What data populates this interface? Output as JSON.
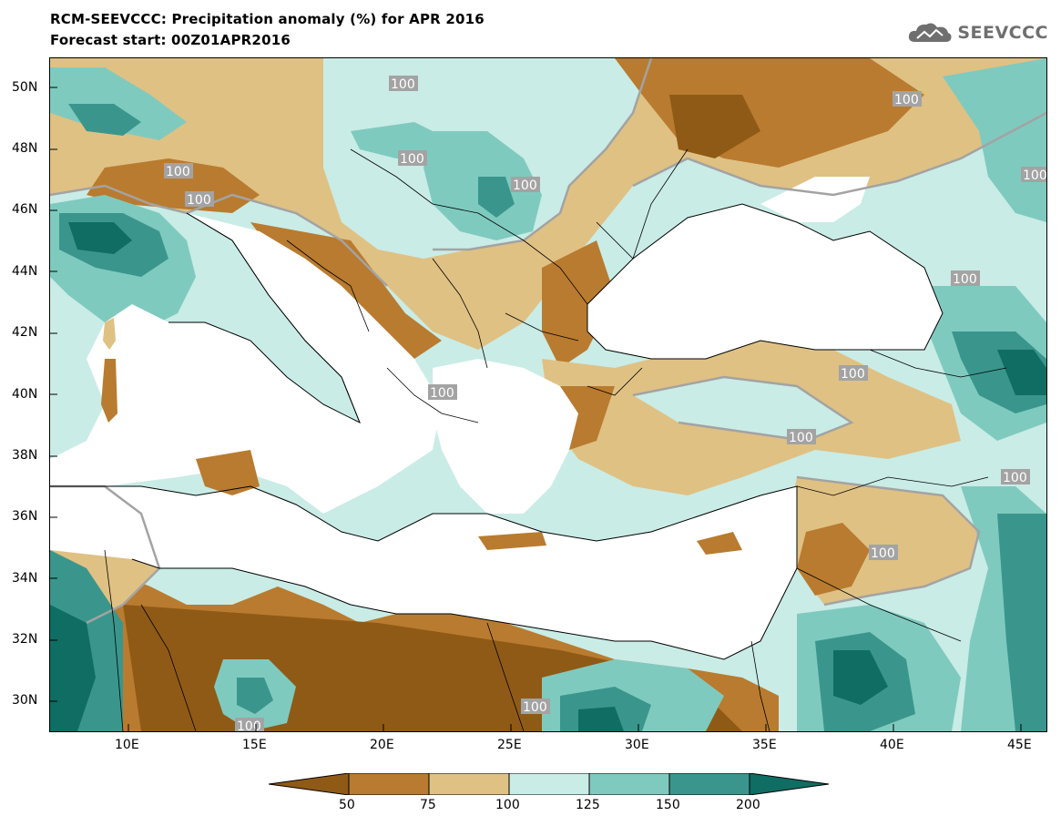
{
  "header": {
    "title_line1": "RCM-SEEVCCC: Precipitation anomaly (%) for APR 2016",
    "title_line2": "Forecast start: 00Z01APR2016"
  },
  "logo": {
    "text": "SEEVCCC",
    "icon": "cloud-icon",
    "color": "#6f6f6f"
  },
  "map": {
    "lat_labels": [
      "50N",
      "48N",
      "46N",
      "44N",
      "42N",
      "40N",
      "38N",
      "36N",
      "34N",
      "32N",
      "30N"
    ],
    "lon_labels": [
      "10E",
      "15E",
      "20E",
      "25E",
      "30E",
      "35E",
      "40E",
      "45E"
    ],
    "contour_label": "100",
    "colors": {
      "below_50": "#8f5a16",
      "50_75": "#b97b2f",
      "75_100": "#dfc184",
      "100_125": "#c9ece6",
      "125_150": "#7fcabf",
      "150_200": "#3a968c",
      "above_200": "#0f6d63",
      "sea": "#ffffff",
      "contour": "#a3a3a3"
    }
  },
  "colorbar": {
    "labels": [
      "50",
      "75",
      "100",
      "125",
      "150",
      "200"
    ],
    "colors": [
      "#8f5a16",
      "#b97b2f",
      "#dfc184",
      "#c9ece6",
      "#7fcabf",
      "#3a968c",
      "#0f6d63"
    ]
  }
}
